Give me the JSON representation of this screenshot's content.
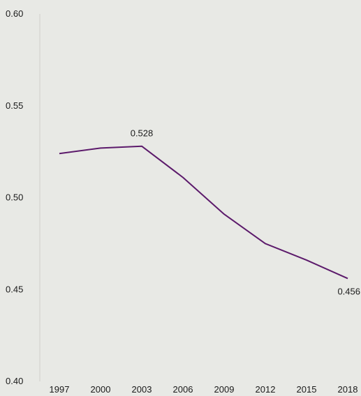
{
  "chart_data": {
    "type": "line",
    "x": [
      "1997",
      "2000",
      "2003",
      "2006",
      "2009",
      "2012",
      "2015",
      "2018"
    ],
    "series": [
      {
        "values": [
          0.524,
          0.527,
          0.528,
          0.511,
          0.491,
          0.475,
          0.466,
          0.456
        ],
        "color": "#5c1a6b"
      }
    ],
    "ylim": [
      0.4,
      0.6
    ],
    "yticks": [
      "0.40",
      "0.45",
      "0.50",
      "0.55",
      "0.60"
    ],
    "annotations": [
      {
        "index": 2,
        "text": "0.528"
      },
      {
        "index": 7,
        "text": "0.456"
      }
    ],
    "title": "",
    "xlabel": "",
    "ylabel": "",
    "grid": false,
    "legend": "none",
    "background": "#e8e9e5",
    "axis_color": "#cfd0cb"
  }
}
